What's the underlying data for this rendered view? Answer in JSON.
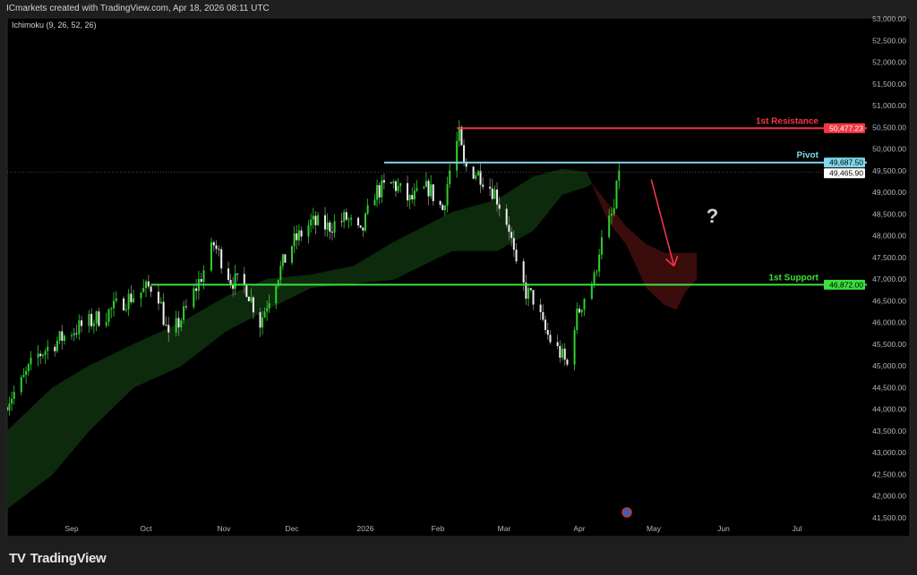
{
  "header": {
    "caption": "ICmarkets created with TradingView.com, Apr 18, 2026 08:11 UTC"
  },
  "footer": {
    "brand": "TradingView",
    "logo_icon": "tradingview-logo-icon"
  },
  "colors": {
    "bull": "#2fd02f",
    "bear": "#f0f0f0",
    "resistance": "#f23645",
    "pivot": "#80d8ea",
    "support": "#3de03d",
    "kumo_bull": "#0d2a0d",
    "kumo_bear": "#3a0c0c",
    "arrow": "#f23645",
    "background": "#000000"
  },
  "chart_data": {
    "type": "candlestick",
    "indicator_label": "Ichimoku (9, 26, 52, 26)",
    "ylim": [
      41500,
      53000
    ],
    "y_ticks": [
      53000,
      52500,
      52000,
      51500,
      51000,
      50500,
      50000,
      49500,
      49000,
      48500,
      48000,
      47500,
      47000,
      46500,
      46000,
      45500,
      45000,
      44500,
      44000,
      43500,
      43000,
      42500,
      42000,
      41500
    ],
    "y_tick_labels": [
      "53,000.00",
      "52,500.00",
      "52,000.00",
      "51,500.00",
      "51,000.00",
      "50,500.00",
      "50,000.00",
      "49,500.00",
      "49,000.00",
      "48,500.00",
      "48,000.00",
      "47,500.00",
      "47,000.00",
      "46,500.00",
      "46,000.00",
      "45,500.00",
      "45,000.00",
      "44,500.00",
      "44,000.00",
      "43,500.00",
      "43,000.00",
      "42,500.00",
      "42,000.00",
      "41,500.00"
    ],
    "x_ticks": [
      {
        "label": "Sep",
        "date": "2025-09-01"
      },
      {
        "label": "Oct",
        "date": "2025-10-01"
      },
      {
        "label": "Nov",
        "date": "2025-11-01"
      },
      {
        "label": "Dec",
        "date": "2025-12-01"
      },
      {
        "label": "2026",
        "date": "2026-01-01"
      },
      {
        "label": "Feb",
        "date": "2026-02-01"
      },
      {
        "label": "Mar",
        "date": "2026-03-01"
      },
      {
        "label": "Apr",
        "date": "2026-04-01"
      },
      {
        "label": "May",
        "date": "2026-05-01"
      },
      {
        "label": "Jun",
        "date": "2026-06-01"
      },
      {
        "label": "Jul",
        "date": "2026-07-01"
      }
    ],
    "price_path": [
      [
        "2025-08-05",
        44200
      ],
      [
        "2025-08-10",
        44500
      ],
      [
        "2025-08-17",
        45200
      ],
      [
        "2025-08-24",
        45500
      ],
      [
        "2025-09-01",
        45800
      ],
      [
        "2025-09-08",
        46000
      ],
      [
        "2025-09-15",
        46200
      ],
      [
        "2025-09-22",
        46500
      ],
      [
        "2025-09-29",
        46700
      ],
      [
        "2025-10-05",
        46900
      ],
      [
        "2025-10-10",
        45600
      ],
      [
        "2025-10-17",
        46300
      ],
      [
        "2025-10-24",
        47200
      ],
      [
        "2025-10-28",
        47800
      ],
      [
        "2025-11-04",
        47000
      ],
      [
        "2025-11-11",
        46800
      ],
      [
        "2025-11-17",
        46000
      ],
      [
        "2025-11-23",
        46900
      ],
      [
        "2025-12-01",
        47800
      ],
      [
        "2025-12-09",
        48300
      ],
      [
        "2025-12-16",
        48200
      ],
      [
        "2025-12-24",
        48400
      ],
      [
        "2025-12-30",
        48000
      ],
      [
        "2026-01-05",
        49000
      ],
      [
        "2026-01-13",
        49200
      ],
      [
        "2026-01-20",
        48800
      ],
      [
        "2026-01-28",
        49100
      ],
      [
        "2026-02-03",
        48600
      ],
      [
        "2026-02-07",
        49800
      ],
      [
        "2026-02-10",
        50300
      ],
      [
        "2026-02-12",
        49600
      ],
      [
        "2026-02-19",
        49400
      ],
      [
        "2026-02-25",
        49000
      ],
      [
        "2026-03-03",
        48200
      ],
      [
        "2026-03-06",
        47200
      ],
      [
        "2026-03-10",
        46700
      ],
      [
        "2026-03-14",
        46500
      ],
      [
        "2026-03-17",
        45900
      ],
      [
        "2026-03-21",
        45500
      ],
      [
        "2026-03-24",
        45300
      ],
      [
        "2026-03-27",
        45000
      ],
      [
        "2026-03-30",
        46000
      ],
      [
        "2026-04-03",
        46600
      ],
      [
        "2026-04-07",
        47000
      ],
      [
        "2026-04-09",
        47700
      ],
      [
        "2026-04-13",
        48300
      ],
      [
        "2026-04-15",
        48600
      ],
      [
        "2026-04-17",
        49500
      ]
    ],
    "kumo": [
      [
        "2025-08-05",
        43500,
        41700
      ],
      [
        "2025-08-24",
        44500,
        42500
      ],
      [
        "2025-09-08",
        45000,
        43500
      ],
      [
        "2025-09-26",
        45500,
        44500
      ],
      [
        "2025-10-15",
        46000,
        45000
      ],
      [
        "2025-11-02",
        46600,
        45800
      ],
      [
        "2025-11-20",
        47000,
        46300
      ],
      [
        "2025-12-09",
        47100,
        46800
      ],
      [
        "2025-12-27",
        47300,
        46900
      ],
      [
        "2026-01-13",
        47850,
        46990
      ],
      [
        "2026-02-07",
        48540,
        47650
      ],
      [
        "2026-02-26",
        48830,
        47650
      ],
      [
        "2026-03-13",
        49360,
        48120
      ],
      [
        "2026-03-25",
        49540,
        48950
      ],
      [
        "2026-04-04",
        49460,
        49130
      ],
      [
        "2026-04-06",
        49200,
        49200
      ],
      [
        "2026-04-13",
        48300,
        48700
      ],
      [
        "2026-04-20",
        47800,
        48200
      ],
      [
        "2026-04-28",
        46800,
        47800
      ],
      [
        "2026-05-06",
        46400,
        47600
      ],
      [
        "2026-05-11",
        46300,
        47600
      ],
      [
        "2026-05-15",
        46700,
        47600
      ],
      [
        "2026-05-20",
        47000,
        47600
      ]
    ],
    "levels": [
      {
        "name": "1st Resistance",
        "value": 50477.23,
        "value_label": "50,477.23",
        "from": "2026-02-09",
        "color_key": "resistance"
      },
      {
        "name": "Pivot",
        "value": 49687.5,
        "value_label": "49,687.50",
        "from": "2026-01-09",
        "color_key": "pivot"
      },
      {
        "name": "1st Support",
        "value": 46872.0,
        "value_label": "46,872.00",
        "from": "2025-10-03",
        "color_key": "support"
      }
    ],
    "last_price": {
      "value": 49465.9,
      "label": "49,465.90"
    },
    "annotations": {
      "arrow": {
        "from": [
          "2026-04-30",
          49300
        ],
        "to": [
          "2026-05-10",
          47300
        ]
      },
      "question": {
        "text": "?",
        "at": [
          "2026-05-27",
          48300
        ]
      }
    }
  }
}
